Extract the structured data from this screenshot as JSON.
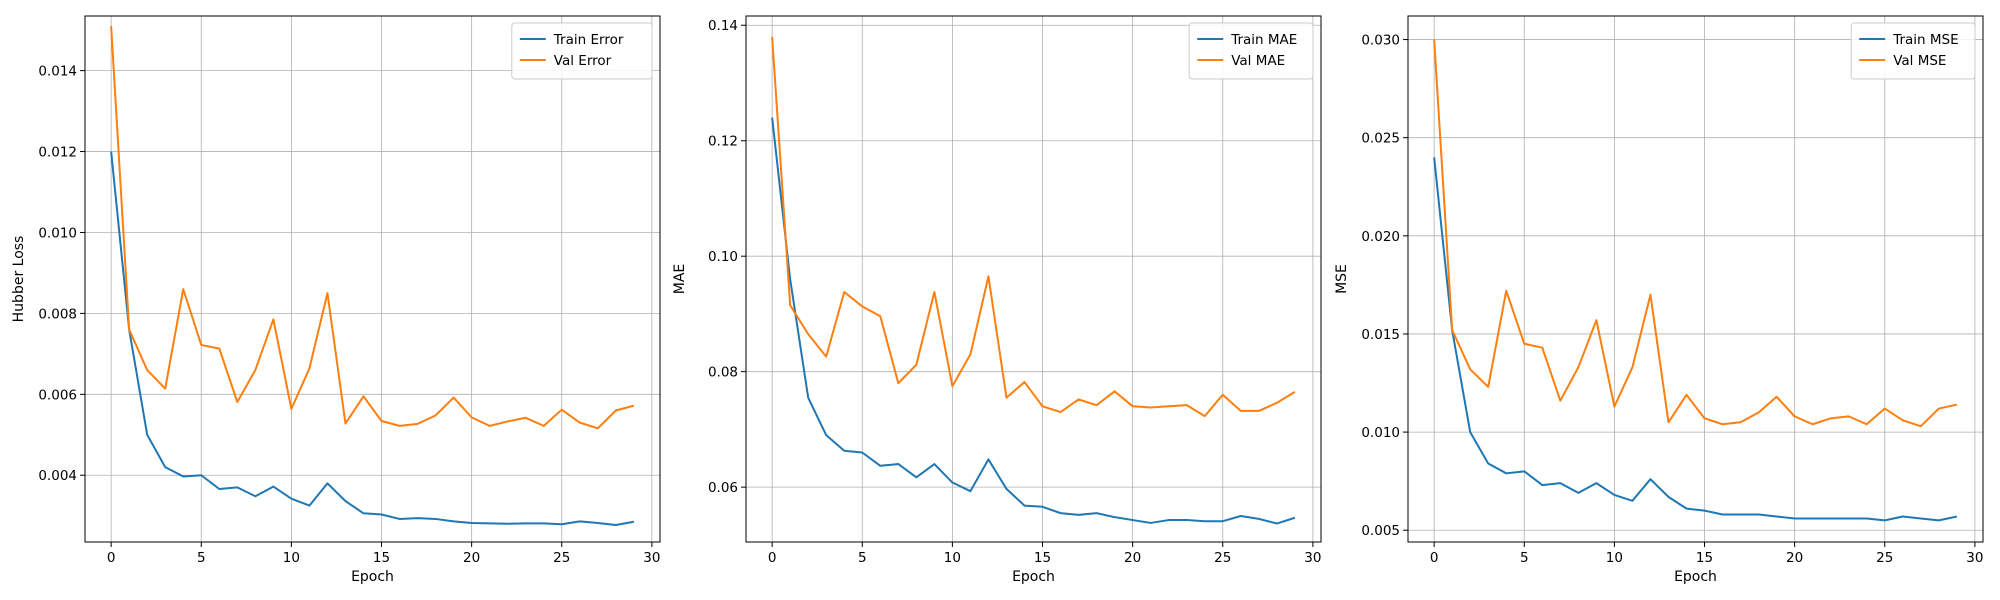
{
  "chart_data": [
    {
      "type": "line",
      "title": "",
      "xlabel": "Epoch",
      "ylabel": "Hubber Loss",
      "xlim": [
        -1.45,
        30.45
      ],
      "ylim": [
        0.00235,
        0.01535
      ],
      "xticks": [
        0,
        5,
        10,
        15,
        20,
        25,
        30
      ],
      "xtick_labels": [
        "0",
        "5",
        "10",
        "15",
        "20",
        "25",
        "30"
      ],
      "yticks": [
        0.004,
        0.006,
        0.008,
        0.01,
        0.012,
        0.014
      ],
      "ytick_labels": [
        "0.004",
        "0.006",
        "0.008",
        "0.010",
        "0.012",
        "0.014"
      ],
      "grid": true,
      "legend": "top-right",
      "x": [
        0,
        1,
        2,
        3,
        4,
        5,
        6,
        7,
        8,
        9,
        10,
        11,
        12,
        13,
        14,
        15,
        16,
        17,
        18,
        19,
        20,
        21,
        22,
        23,
        24,
        25,
        26,
        27,
        28,
        29
      ],
      "series": [
        {
          "name": "Train Error",
          "color": "#1f77b4",
          "values": [
            0.012,
            0.0076,
            0.005,
            0.0042,
            0.00397,
            0.004,
            0.00366,
            0.0037,
            0.00348,
            0.00372,
            0.00342,
            0.00325,
            0.0038,
            0.00336,
            0.00306,
            0.00303,
            0.00292,
            0.00294,
            0.00292,
            0.00286,
            0.00282,
            0.00281,
            0.0028,
            0.00281,
            0.00281,
            0.00279,
            0.00286,
            0.00282,
            0.00277,
            0.00285
          ]
        },
        {
          "name": "Val Error",
          "color": "#ff7f0e",
          "values": [
            0.0151,
            0.0076,
            0.0066,
            0.00614,
            0.0086,
            0.00722,
            0.00713,
            0.00581,
            0.0066,
            0.00785,
            0.00564,
            0.00664,
            0.0085,
            0.00528,
            0.00595,
            0.00534,
            0.00522,
            0.00527,
            0.00548,
            0.00592,
            0.00543,
            0.00522,
            0.00533,
            0.00542,
            0.00522,
            0.00562,
            0.0053,
            0.00516,
            0.0056,
            0.00572
          ]
        }
      ]
    },
    {
      "type": "line",
      "title": "",
      "xlabel": "Epoch",
      "ylabel": "MAE",
      "xlim": [
        -1.45,
        30.45
      ],
      "ylim": [
        0.0505,
        0.1416
      ],
      "xticks": [
        0,
        5,
        10,
        15,
        20,
        25,
        30
      ],
      "xtick_labels": [
        "0",
        "5",
        "10",
        "15",
        "20",
        "25",
        "30"
      ],
      "yticks": [
        0.06,
        0.08,
        0.1,
        0.12,
        0.14
      ],
      "ytick_labels": [
        "0.06",
        "0.08",
        "0.10",
        "0.12",
        "0.14"
      ],
      "grid": true,
      "legend": "top-right",
      "x": [
        0,
        1,
        2,
        3,
        4,
        5,
        6,
        7,
        8,
        9,
        10,
        11,
        12,
        13,
        14,
        15,
        16,
        17,
        18,
        19,
        20,
        21,
        22,
        23,
        24,
        25,
        26,
        27,
        28,
        29
      ],
      "series": [
        {
          "name": "Train MAE",
          "color": "#1f77b4",
          "values": [
            0.124,
            0.096,
            0.0755,
            0.069,
            0.0663,
            0.066,
            0.0637,
            0.064,
            0.0617,
            0.064,
            0.0608,
            0.0593,
            0.0648,
            0.0597,
            0.0568,
            0.0566,
            0.0555,
            0.0552,
            0.0555,
            0.0548,
            0.0543,
            0.0538,
            0.0543,
            0.0543,
            0.0541,
            0.0541,
            0.055,
            0.0545,
            0.0537,
            0.0547
          ]
        },
        {
          "name": "Val MAE",
          "color": "#ff7f0e",
          "values": [
            0.138,
            0.0915,
            0.0865,
            0.0826,
            0.0938,
            0.0913,
            0.0896,
            0.078,
            0.0812,
            0.0938,
            0.0775,
            0.083,
            0.0965,
            0.0755,
            0.0782,
            0.074,
            0.073,
            0.0752,
            0.0742,
            0.0766,
            0.074,
            0.0738,
            0.074,
            0.0742,
            0.0723,
            0.076,
            0.0732,
            0.0732,
            0.0746,
            0.0765
          ]
        }
      ]
    },
    {
      "type": "line",
      "title": "",
      "xlabel": "Epoch",
      "ylabel": "MSE",
      "xlim": [
        -1.45,
        30.45
      ],
      "ylim": [
        0.0044,
        0.0312
      ],
      "xticks": [
        0,
        5,
        10,
        15,
        20,
        25,
        30
      ],
      "xtick_labels": [
        "0",
        "5",
        "10",
        "15",
        "20",
        "25",
        "30"
      ],
      "yticks": [
        0.005,
        0.01,
        0.015,
        0.02,
        0.025,
        0.03
      ],
      "ytick_labels": [
        "0.005",
        "0.010",
        "0.015",
        "0.020",
        "0.025",
        "0.030"
      ],
      "grid": true,
      "legend": "top-right",
      "x": [
        0,
        1,
        2,
        3,
        4,
        5,
        6,
        7,
        8,
        9,
        10,
        11,
        12,
        13,
        14,
        15,
        16,
        17,
        18,
        19,
        20,
        21,
        22,
        23,
        24,
        25,
        26,
        27,
        28,
        29
      ],
      "series": [
        {
          "name": "Train MSE",
          "color": "#1f77b4",
          "values": [
            0.024,
            0.0152,
            0.01,
            0.0084,
            0.0079,
            0.008,
            0.0073,
            0.0074,
            0.0069,
            0.0074,
            0.0068,
            0.0065,
            0.0076,
            0.0067,
            0.0061,
            0.006,
            0.0058,
            0.0058,
            0.0058,
            0.0057,
            0.0056,
            0.0056,
            0.0056,
            0.0056,
            0.0056,
            0.0055,
            0.0057,
            0.0056,
            0.0055,
            0.0057
          ]
        },
        {
          "name": "Val MSE",
          "color": "#ff7f0e",
          "values": [
            0.03,
            0.0152,
            0.0132,
            0.0123,
            0.0172,
            0.0145,
            0.0143,
            0.0116,
            0.0133,
            0.0157,
            0.0113,
            0.0133,
            0.017,
            0.0105,
            0.0119,
            0.0107,
            0.0104,
            0.0105,
            0.011,
            0.0118,
            0.0108,
            0.0104,
            0.0107,
            0.0108,
            0.0104,
            0.0112,
            0.0106,
            0.0103,
            0.0112,
            0.0114
          ]
        }
      ]
    }
  ]
}
